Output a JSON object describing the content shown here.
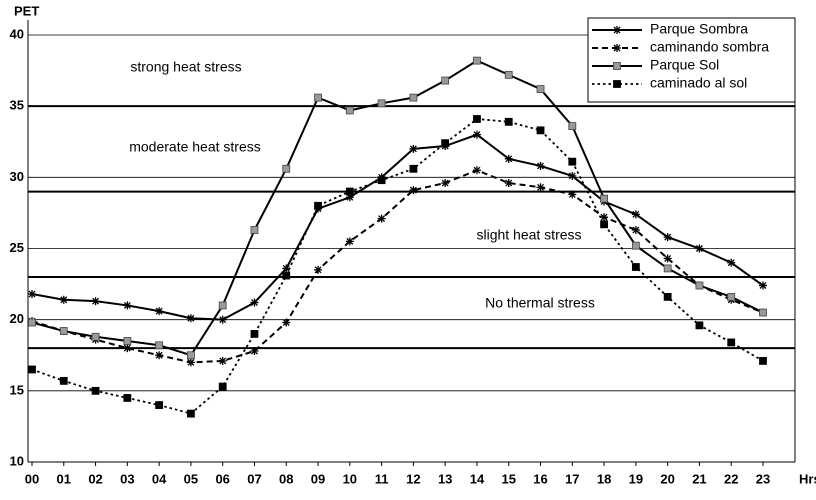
{
  "chart_data": {
    "type": "line",
    "y_label": "PET",
    "x_label": "Hrs",
    "categories": [
      "00",
      "01",
      "02",
      "03",
      "04",
      "05",
      "06",
      "07",
      "08",
      "09",
      "10",
      "11",
      "12",
      "13",
      "14",
      "15",
      "16",
      "17",
      "18",
      "19",
      "20",
      "21",
      "22",
      "23"
    ],
    "ylim": [
      10,
      40
    ],
    "yticks": [
      10,
      15,
      20,
      25,
      30,
      35,
      40
    ],
    "grid": true,
    "thresholds": [
      18,
      23,
      29,
      35
    ],
    "annotations": [
      "strong heat stress",
      "moderate heat stress",
      "slight heat stress",
      "No thermal stress"
    ],
    "legend": "top-right",
    "series": [
      {
        "name": "Parque Sombra",
        "color": "#000000",
        "marker": "asterisk",
        "dash": "solid",
        "values": [
          21.8,
          21.4,
          21.3,
          21.0,
          20.6,
          20.1,
          20.0,
          21.2,
          23.6,
          27.8,
          28.6,
          30.0,
          32.0,
          32.2,
          33.0,
          31.3,
          30.8,
          30.1,
          28.3,
          27.4,
          25.8,
          25.0,
          24.0,
          22.4
        ]
      },
      {
        "name": "caminando sombra",
        "color": "#000000",
        "marker": "asterisk",
        "dash": "dashed",
        "values": [
          19.9,
          19.2,
          18.6,
          18.0,
          17.5,
          17.0,
          17.1,
          17.8,
          19.8,
          23.5,
          25.5,
          27.1,
          29.1,
          29.6,
          30.5,
          29.6,
          29.3,
          28.8,
          27.2,
          26.3,
          24.3,
          22.4,
          21.4,
          20.5
        ]
      },
      {
        "name": "Parque Sol",
        "color": "#000000",
        "marker": "square-gray",
        "dash": "solid",
        "values": [
          19.8,
          19.2,
          18.8,
          18.5,
          18.2,
          17.5,
          21.0,
          26.3,
          30.6,
          35.6,
          34.7,
          35.2,
          35.6,
          36.8,
          38.2,
          37.2,
          36.2,
          33.6,
          28.5,
          25.2,
          23.6,
          22.4,
          21.6,
          20.5
        ]
      },
      {
        "name": "caminado al sol",
        "color": "#000000",
        "marker": "square-black",
        "dash": "dotted",
        "values": [
          16.5,
          15.7,
          15.0,
          14.5,
          14.0,
          13.4,
          15.3,
          19.0,
          23.1,
          28.0,
          29.0,
          29.8,
          30.6,
          32.4,
          34.1,
          33.9,
          33.3,
          31.1,
          26.7,
          23.7,
          21.6,
          19.6,
          18.4,
          17.1
        ]
      }
    ]
  }
}
